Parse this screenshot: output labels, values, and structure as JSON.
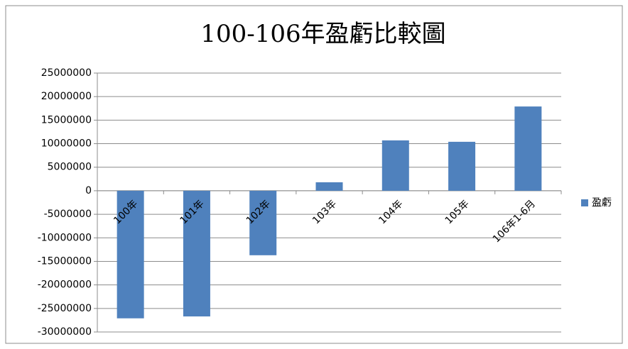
{
  "chart_data": {
    "type": "bar",
    "title": "100-106年盈虧比較圖",
    "categories": [
      "100年",
      "101年",
      "102年",
      "103年",
      "104年",
      "105年",
      "106年1-6月"
    ],
    "series": [
      {
        "name": "盈虧",
        "color": "#4f81bd",
        "values": [
          -27100000,
          -26700000,
          -13700000,
          1800000,
          10700000,
          10400000,
          17900000
        ]
      }
    ],
    "ylim": [
      -30000000,
      25000000
    ],
    "yticks": [
      -30000000,
      -25000000,
      -20000000,
      -15000000,
      -10000000,
      -5000000,
      0,
      5000000,
      10000000,
      15000000,
      20000000,
      25000000
    ],
    "grid": true,
    "legend": "right"
  }
}
